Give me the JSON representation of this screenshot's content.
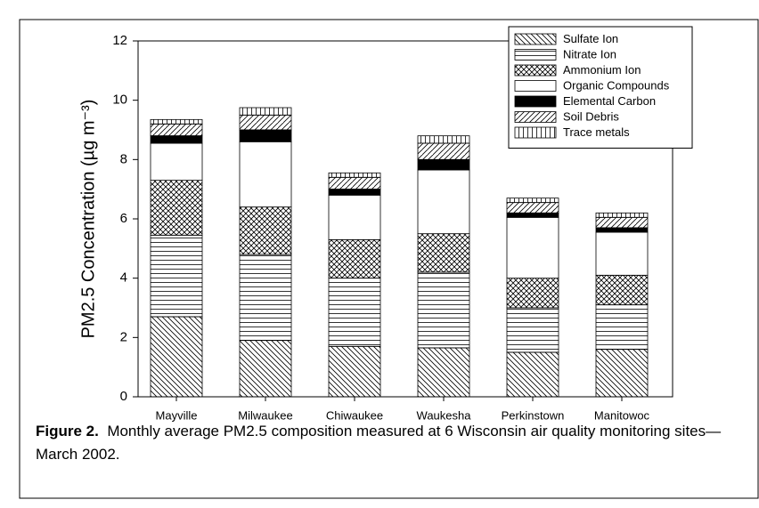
{
  "chart_data": {
    "type": "stacked_bar",
    "ylabel": "PM2.5 Concentration (µg m⁻³)",
    "categories": [
      "Mayville",
      "Milwaukee",
      "Chiwaukee",
      "Waukesha",
      "Perkinstown",
      "Manitowoc"
    ],
    "series": [
      {
        "name": "Sulfate Ion",
        "color": "#000000",
        "pattern": "diag-down",
        "values": [
          2.7,
          1.9,
          1.7,
          1.65,
          1.5,
          1.6
        ]
      },
      {
        "name": "Nitrate Ion",
        "color": "#000000",
        "pattern": "horiz",
        "values": [
          2.75,
          2.9,
          2.3,
          2.55,
          1.5,
          1.5
        ]
      },
      {
        "name": "Ammonium Ion",
        "color": "#000000",
        "pattern": "cross",
        "values": [
          1.85,
          1.6,
          1.3,
          1.3,
          1.0,
          1.0
        ]
      },
      {
        "name": "Organic Compounds",
        "color": "#000000",
        "pattern": "none",
        "values": [
          1.25,
          2.2,
          1.5,
          2.15,
          2.05,
          1.45
        ]
      },
      {
        "name": "Elemental Carbon",
        "color": "#000000",
        "pattern": "solid",
        "values": [
          0.25,
          0.4,
          0.2,
          0.35,
          0.15,
          0.15
        ]
      },
      {
        "name": "Soil Debris",
        "color": "#000000",
        "pattern": "diag-up",
        "values": [
          0.4,
          0.5,
          0.4,
          0.55,
          0.35,
          0.35
        ]
      },
      {
        "name": "Trace metals",
        "color": "#000000",
        "pattern": "vert",
        "values": [
          0.15,
          0.25,
          0.15,
          0.25,
          0.15,
          0.15
        ]
      }
    ],
    "ylim": [
      0,
      12
    ],
    "yticks": [
      0,
      2,
      4,
      6,
      8,
      10,
      12
    ],
    "legend": "upper-right",
    "caption_label": "Figure 2.",
    "caption_text": "Monthly average PM2.5 composition measured at 6 Wisconsin air quality monitoring sites—March 2002."
  }
}
